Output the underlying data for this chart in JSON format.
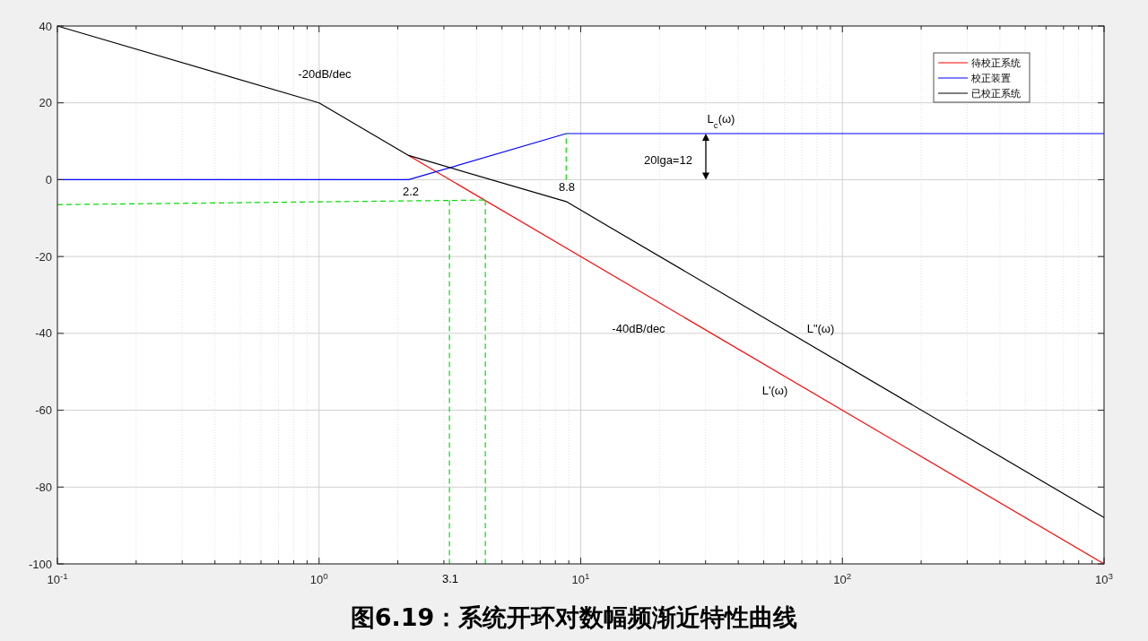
{
  "chart_data": {
    "type": "line",
    "title": "图6.19：系统开环对数幅频渐近特性曲线",
    "log": "x",
    "grid": true,
    "legend": "top right",
    "line_style": "solid",
    "marker": "none",
    "xlim": [
      0.1,
      1000
    ],
    "ylim": [
      -100,
      40
    ],
    "xticks": [
      {
        "value": 0.1,
        "label": "10$^{-1}$"
      },
      {
        "value": 0.2,
        "label": null
      },
      {
        "value": 0.3,
        "label": null
      },
      {
        "value": 0.4,
        "label": null
      },
      {
        "value": 0.5,
        "label": null
      },
      {
        "value": 0.6,
        "label": null
      },
      {
        "value": 0.7,
        "label": null
      },
      {
        "value": 0.8,
        "label": null
      },
      {
        "value": 0.9,
        "label": null
      },
      {
        "value": 1,
        "label": "10$^{0}$"
      },
      {
        "value": 2,
        "label": null
      },
      {
        "value": 3,
        "label": null
      },
      {
        "value": 4,
        "label": null
      },
      {
        "value": 5,
        "label": null
      },
      {
        "value": 6,
        "label": null
      },
      {
        "value": 7,
        "label": null
      },
      {
        "value": 8,
        "label": null
      },
      {
        "value": 9,
        "label": null
      },
      {
        "value": 10,
        "label": "10$^{1}$"
      },
      {
        "value": 20,
        "label": null
      },
      {
        "value": 30,
        "label": null
      },
      {
        "value": 40,
        "label": null
      },
      {
        "value": 50,
        "label": null
      },
      {
        "value": 60,
        "label": null
      },
      {
        "value": 70,
        "label": null
      },
      {
        "value": 80,
        "label": null
      },
      {
        "value": 90,
        "label": null
      },
      {
        "value": 100,
        "label": "10$^{2}$"
      },
      {
        "value": 200,
        "label": null
      },
      {
        "value": 300,
        "label": null
      },
      {
        "value": 400,
        "label": null
      },
      {
        "value": 500,
        "label": null
      },
      {
        "value": 600,
        "label": null
      },
      {
        "value": 700,
        "label": null
      },
      {
        "value": 800,
        "label": null
      },
      {
        "value": 900,
        "label": null
      },
      {
        "value": 1000,
        "label": "10$^{3}$"
      }
    ],
    "yticks": [
      -100,
      -80,
      -60,
      -40,
      -20,
      0,
      20,
      40
    ],
    "series": [
      {
        "name": "待校正系统",
        "color": "#ff0000",
        "x": [
          2.2,
          1000
        ],
        "values": [
          6.3,
          -100
        ]
      },
      {
        "name": "校正装置",
        "color": "#0000ff",
        "x": [
          0.1,
          2.2,
          8.8,
          1000
        ],
        "values": [
          0,
          0,
          12,
          12
        ]
      },
      {
        "name": "已校正系统",
        "color": "#000000",
        "x": [
          0.1,
          1,
          2.2,
          8.8,
          1000
        ],
        "values": [
          40,
          20,
          6.3,
          -5.7,
          -87.9
        ]
      },
      {
        "color": "#00dd00",
        "line_style": "dashed",
        "x": [
          0.1,
          4.32
        ],
        "values": [
          -6.5,
          -5.3
        ]
      },
      {
        "color": "#00dd00",
        "line_style": "dashed",
        "x": [
          3.15,
          3.15
        ],
        "values": [
          -5.4,
          -100
        ]
      },
      {
        "color": "#00dd00",
        "line_style": "dashed",
        "x": [
          4.32,
          4.32
        ],
        "values": [
          -5.3,
          -100
        ]
      },
      {
        "color": "#00dd00",
        "line_style": "dashed",
        "x": [
          8.8,
          8.8
        ],
        "values": [
          0,
          12
        ]
      }
    ],
    "annotations": [
      "-20dB/dec",
      "-40dB/dec",
      "L$_{c}$(ω)",
      "L\"(ω)",
      "L'(ω)",
      "20lga=12",
      "2.2",
      "8.8",
      "3.1"
    ]
  }
}
